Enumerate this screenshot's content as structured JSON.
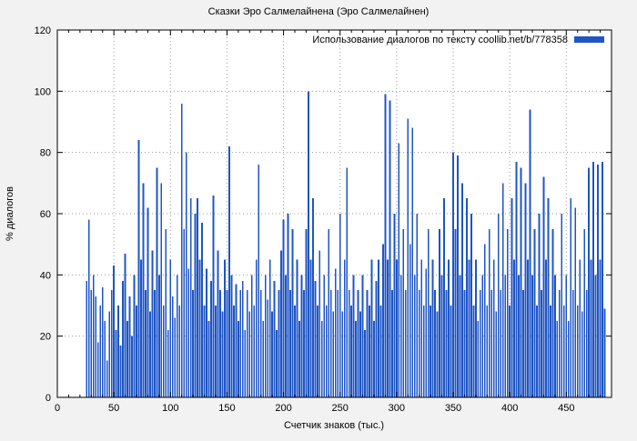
{
  "chart_data": {
    "type": "bar",
    "title": "Сказки Эро Салмелайнена (Эро Салмелайнен)",
    "legend": "Использование диалогов по тексту coollib.net/b/778358",
    "xlabel": "Счетчик знаков (тыс.)",
    "ylabel": "% диалогов",
    "bar_color": "#1f55c4",
    "xlim": [
      0,
      490
    ],
    "ylim": [
      0,
      120
    ],
    "xticks": [
      0,
      50,
      100,
      150,
      200,
      250,
      300,
      350,
      400,
      450
    ],
    "yticks": [
      0,
      20,
      40,
      60,
      80,
      100,
      120
    ],
    "grid": true,
    "legend_position": "top-right",
    "x_start": 26,
    "x_step": 2,
    "values": [
      38,
      58,
      35,
      40,
      33,
      18,
      30,
      36,
      25,
      12,
      28,
      35,
      43,
      22,
      30,
      17,
      38,
      47,
      25,
      33,
      20,
      40,
      30,
      84,
      45,
      70,
      35,
      62,
      28,
      48,
      35,
      75,
      40,
      70,
      30,
      55,
      22,
      45,
      33,
      26,
      40,
      30,
      96,
      55,
      80,
      42,
      65,
      35,
      60,
      65,
      45,
      57,
      30,
      42,
      25,
      38,
      66,
      30,
      48,
      35,
      28,
      45,
      35,
      82,
      40,
      30,
      37,
      25,
      35,
      38,
      22,
      35,
      28,
      40,
      30,
      45,
      76,
      35,
      25,
      40,
      32,
      45,
      28,
      38,
      22,
      35,
      48,
      58,
      40,
      60,
      35,
      55,
      30,
      45,
      25,
      40,
      35,
      55,
      100,
      45,
      65,
      38,
      30,
      48,
      25,
      40,
      30,
      55,
      35,
      28,
      42,
      35,
      60,
      28,
      45,
      75,
      35,
      30,
      40,
      25,
      35,
      28,
      40,
      22,
      35,
      30,
      45,
      25,
      38,
      45,
      30,
      50,
      99,
      45,
      97,
      35,
      60,
      45,
      83,
      40,
      55,
      35,
      91,
      50,
      88,
      40,
      60,
      35,
      45,
      30,
      42,
      55,
      30,
      45,
      35,
      28,
      55,
      40,
      65,
      35,
      45,
      30,
      80,
      55,
      79,
      40,
      70,
      35,
      65,
      45,
      60,
      30,
      45,
      25,
      35,
      40,
      50,
      30,
      55,
      35,
      45,
      28,
      60,
      35,
      70,
      40,
      55,
      30,
      65,
      45,
      77,
      40,
      75,
      35,
      70,
      45,
      94,
      40,
      55,
      30,
      60,
      35,
      72,
      45,
      65,
      30,
      55,
      40,
      25,
      35,
      60,
      30,
      40,
      25,
      65,
      35,
      62,
      30,
      45,
      28,
      55,
      35,
      75,
      45,
      77,
      40,
      76,
      45,
      77,
      29
    ]
  }
}
